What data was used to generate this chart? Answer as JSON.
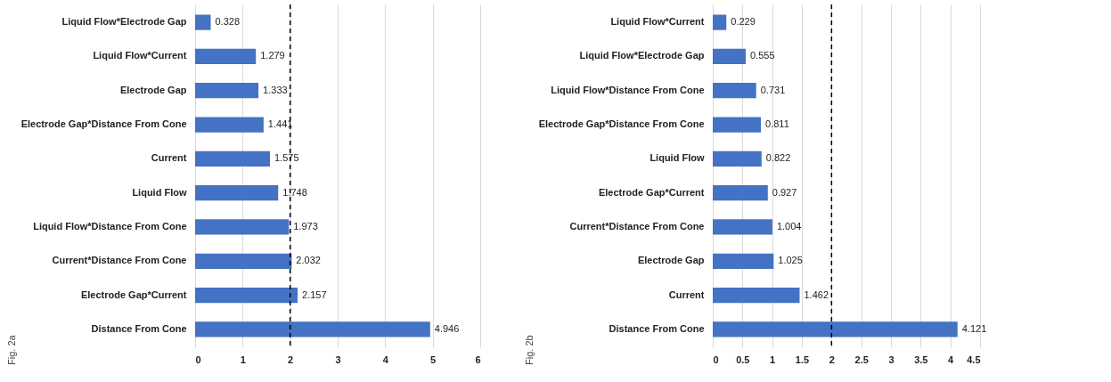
{
  "chart_data": [
    {
      "type": "bar",
      "orientation": "horizontal",
      "categories": [
        "Liquid Flow*Electrode Gap",
        "Liquid Flow*Current",
        "Electrode Gap",
        "Electrode Gap*Distance From Cone",
        "Current",
        "Liquid Flow",
        "Liquid Flow*Distance From Cone",
        "Current*Distance From Cone",
        "Electrode Gap*Current",
        "Distance From Cone"
      ],
      "values": [
        0.328,
        1.279,
        1.333,
        1.441,
        1.575,
        1.748,
        1.973,
        2.032,
        2.157,
        4.946
      ],
      "color": "#4472c4",
      "xlim": [
        0,
        6
      ],
      "xticks": [
        0,
        1,
        2,
        3,
        4,
        5,
        6
      ],
      "grid": "x",
      "data_labels": true,
      "ref_lines": [
        {
          "axis": "x",
          "value": 2,
          "color": "#000000",
          "line_style": "dashed"
        }
      ],
      "annotations": [
        "Fig. 2a"
      ]
    },
    {
      "type": "bar",
      "orientation": "horizontal",
      "categories": [
        "Liquid Flow*Current",
        "Liquid Flow*Electrode Gap",
        "Liquid Flow*Distance From Cone",
        "Electrode Gap*Distance From Cone",
        "Liquid Flow",
        "Electrode Gap*Current",
        "Current*Distance From Cone",
        "Electrode Gap",
        "Current",
        "Distance From Cone"
      ],
      "values": [
        0.229,
        0.555,
        0.731,
        0.811,
        0.822,
        0.927,
        1.004,
        1.025,
        1.462,
        4.121
      ],
      "color": "#4472c4",
      "xlim": [
        0,
        4.5
      ],
      "xticks": [
        0,
        0.5,
        1,
        1.5,
        2,
        2.5,
        3,
        3.5,
        4,
        4.5
      ],
      "grid": "x",
      "data_labels": true,
      "ref_lines": [
        {
          "axis": "x",
          "value": 2,
          "color": "#000000",
          "line_style": "dashed"
        }
      ],
      "annotations": [
        "Fig. 2b"
      ]
    }
  ]
}
